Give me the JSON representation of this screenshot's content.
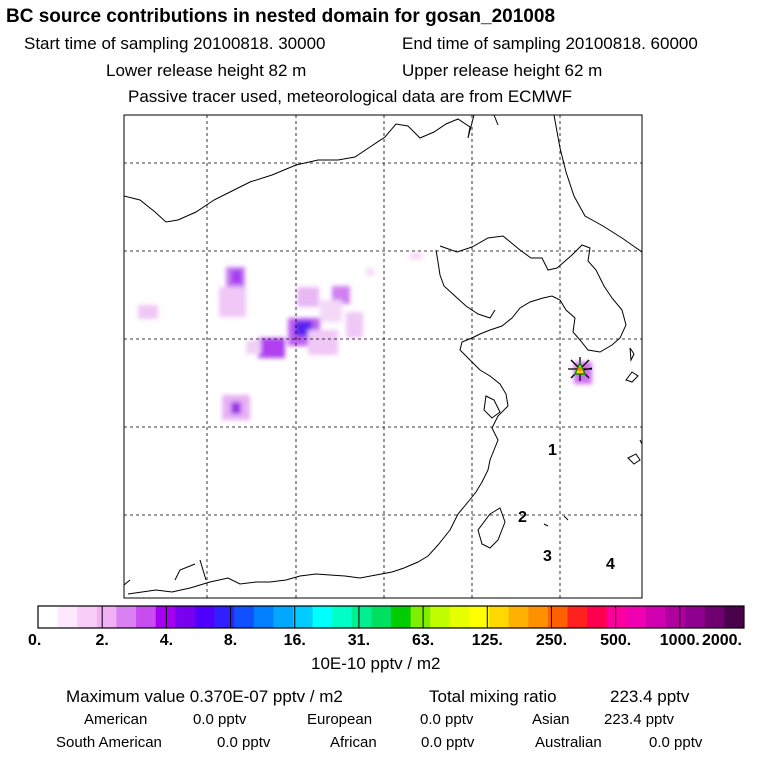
{
  "header": {
    "title": "BC  source contributions in nested domain for gosan_201008",
    "start": "Start time of sampling 20100818. 30000",
    "end": "End time of sampling 20100818. 60000",
    "lower": "Lower release height   82 m",
    "upper": "Upper release height   62 m",
    "tracer": "Passive tracer used, meteorological data are from ECMWF"
  },
  "map": {
    "region_labels": [
      "1",
      "2",
      "3",
      "4"
    ],
    "receptor_marker": "star-icon"
  },
  "colorbar": {
    "colors": [
      "#ffffff",
      "#fde8fd",
      "#f8cef8",
      "#f1b0f4",
      "#d980f2",
      "#c84cf0",
      "#a500f2",
      "#7a00f0",
      "#4f00ff",
      "#3020ff",
      "#1050ff",
      "#0080ff",
      "#00a8ff",
      "#00ccff",
      "#00ffff",
      "#00ffc8",
      "#00f090",
      "#00e060",
      "#00cc00",
      "#80ee00",
      "#c0ff00",
      "#e8ff00",
      "#ffff00",
      "#ffd800",
      "#ffb000",
      "#ff9000",
      "#ff6000",
      "#ff2020",
      "#ff0050",
      "#ff00a0",
      "#f000b0",
      "#d000b0",
      "#b000a0",
      "#900090",
      "#700070",
      "#4a004a"
    ],
    "tick_labels": [
      "0.",
      "2.",
      "4.",
      "8.",
      "16.",
      "31.",
      "63.",
      "125.",
      "250.",
      "500.",
      "1000.",
      "2000."
    ],
    "unit": "10E-10 pptv / m2"
  },
  "summary": {
    "max_label": "Maximum value  0.370E-07 pptv / m2",
    "total_label": "Total mixing ratio",
    "total_value": "223.4 pptv",
    "rows": [
      [
        {
          "label": "American",
          "value": "0.0 pptv"
        },
        {
          "label": "European",
          "value": "0.0 pptv"
        },
        {
          "label": "Asian",
          "value": "223.4 pptv"
        }
      ],
      [
        {
          "label": "South American",
          "value": "0.0 pptv"
        },
        {
          "label": "African",
          "value": "0.0 pptv"
        },
        {
          "label": "Australian",
          "value": "0.0 pptv"
        }
      ]
    ]
  }
}
